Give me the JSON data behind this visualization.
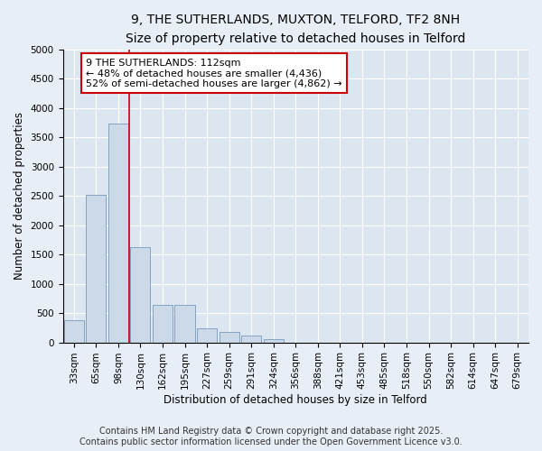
{
  "title_line1": "9, THE SUTHERLANDS, MUXTON, TELFORD, TF2 8NH",
  "title_line2": "Size of property relative to detached houses in Telford",
  "xlabel": "Distribution of detached houses by size in Telford",
  "ylabel": "Number of detached properties",
  "categories": [
    "33sqm",
    "65sqm",
    "98sqm",
    "130sqm",
    "162sqm",
    "195sqm",
    "227sqm",
    "259sqm",
    "291sqm",
    "324sqm",
    "356sqm",
    "388sqm",
    "421sqm",
    "453sqm",
    "485sqm",
    "518sqm",
    "550sqm",
    "582sqm",
    "614sqm",
    "647sqm",
    "679sqm"
  ],
  "values": [
    380,
    2520,
    3730,
    1620,
    640,
    640,
    235,
    185,
    110,
    60,
    0,
    0,
    0,
    0,
    0,
    0,
    0,
    0,
    0,
    0,
    0
  ],
  "bar_color": "#ccd9e8",
  "bar_edge_color": "#7799bb",
  "vline_color": "#cc0000",
  "annotation_line1": "9 THE SUTHERLANDS: 112sqm",
  "annotation_line2": "← 48% of detached houses are smaller (4,436)",
  "annotation_line3": "52% of semi-detached houses are larger (4,862) →",
  "annotation_box_facecolor": "#ffffff",
  "annotation_box_edgecolor": "#cc0000",
  "ylim_max": 5000,
  "yticks": [
    0,
    500,
    1000,
    1500,
    2000,
    2500,
    3000,
    3500,
    4000,
    4500,
    5000
  ],
  "fig_facecolor": "#e8eef5",
  "ax_facecolor": "#dce6f0",
  "grid_color": "#ffffff",
  "footer_line1": "Contains HM Land Registry data © Crown copyright and database right 2025.",
  "footer_line2": "Contains public sector information licensed under the Open Government Licence v3.0.",
  "title_fontsize": 10,
  "subtitle_fontsize": 9,
  "axis_label_fontsize": 8.5,
  "tick_fontsize": 7.5,
  "annotation_fontsize": 8,
  "footer_fontsize": 7
}
